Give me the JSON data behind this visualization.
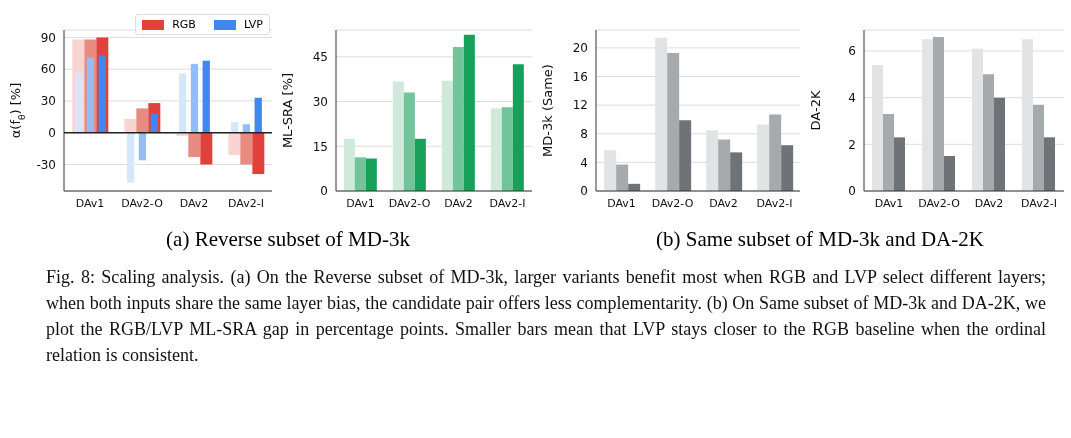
{
  "chart_data": [
    {
      "type": "bar",
      "ylabel": "α(f$_{θ}$) [%]",
      "categories": [
        "DAv1",
        "DAv2-O",
        "DAv2",
        "DAv2-I"
      ],
      "series": [
        {
          "color": "#f8d5d0",
          "values": [
            88,
            13,
            -3,
            -21
          ]
        },
        {
          "color": "#e88b80",
          "values": [
            88,
            23,
            -23,
            -30
          ]
        },
        {
          "name": "RGB",
          "color": "#e0413a",
          "values": [
            90,
            28,
            -30,
            -39
          ]
        },
        {
          "color": "#d6e6fb",
          "values": [
            57,
            -47,
            56,
            10
          ]
        },
        {
          "color": "#94bdf6",
          "values": [
            71,
            -26,
            65,
            8
          ]
        },
        {
          "name": "LVP",
          "color": "#4286f0",
          "values": [
            73,
            18,
            68,
            33
          ]
        }
      ],
      "ylim": [
        -55,
        97
      ],
      "yticks": [
        -30,
        0,
        30,
        60,
        90
      ],
      "grid": "y",
      "legend": "top right",
      "ref_lines": [
        {
          "axis": "y",
          "value": 0,
          "color": "#222222"
        }
      ],
      "annotations": [
        "(a) Reverse subset of MD-3k"
      ]
    },
    {
      "type": "bar",
      "ylabel": "ML-SRA [%]",
      "categories": [
        "DAv1",
        "DAv2-O",
        "DAv2",
        "DAv2-I"
      ],
      "series": [
        {
          "color": "#cfeadb",
          "values": [
            17.5,
            36.7,
            37,
            27.7
          ]
        },
        {
          "color": "#72c49a",
          "values": [
            11.3,
            33,
            48.3,
            28.1
          ]
        },
        {
          "color": "#16a05a",
          "values": [
            10.9,
            17.5,
            52.4,
            42.5
          ]
        }
      ],
      "ylim": [
        0,
        54
      ],
      "yticks": [
        0,
        15,
        30,
        45
      ],
      "grid": "y"
    },
    {
      "type": "bar",
      "ylabel": "MD-3k (Same)",
      "categories": [
        "DAv1",
        "DAv2-O",
        "DAv2",
        "DAv2-I"
      ],
      "series": [
        {
          "color": "#e2e3e5",
          "values": [
            5.7,
            21.4,
            8.5,
            9.3
          ]
        },
        {
          "color": "#a7aaad",
          "values": [
            3.7,
            19.3,
            7.2,
            10.7
          ]
        },
        {
          "color": "#6f7276",
          "values": [
            1.0,
            9.9,
            5.4,
            6.4
          ]
        }
      ],
      "ylim": [
        0,
        22.5
      ],
      "yticks": [
        0,
        4,
        8,
        12,
        16,
        20
      ],
      "grid": "y",
      "annotations": [
        "(b) Same subset of MD-3k and DA-2K"
      ]
    },
    {
      "type": "bar",
      "ylabel": "DA-2K",
      "categories": [
        "DAv1",
        "DAv2-O",
        "DAv2",
        "DAv2-I"
      ],
      "series": [
        {
          "color": "#e2e3e5",
          "values": [
            5.4,
            6.5,
            6.1,
            6.5
          ]
        },
        {
          "color": "#a7aaad",
          "values": [
            3.3,
            6.6,
            5.0,
            3.7
          ]
        },
        {
          "color": "#6f7276",
          "values": [
            2.3,
            1.5,
            4.0,
            2.3
          ]
        }
      ],
      "ylim": [
        0,
        6.9
      ],
      "yticks": [
        0,
        2,
        4,
        6
      ],
      "grid": "y"
    },
    {
      "type": "other",
      "annotations": [
        "Fig. 8: Scaling analysis. (a) On the Reverse subset of MD-3k, larger variants benefit most when RGB and LVP select different layers; when both inputs share the same layer bias, the candidate pair offers less complementarity. (b) On Same subset of MD-3k and DA-2K, we plot the RGB/LVP ML-SRA gap in percentage points. Smaller bars mean that LVP stays closer to the RGB baseline when the ordinal relation is consistent."
      ]
    }
  ]
}
